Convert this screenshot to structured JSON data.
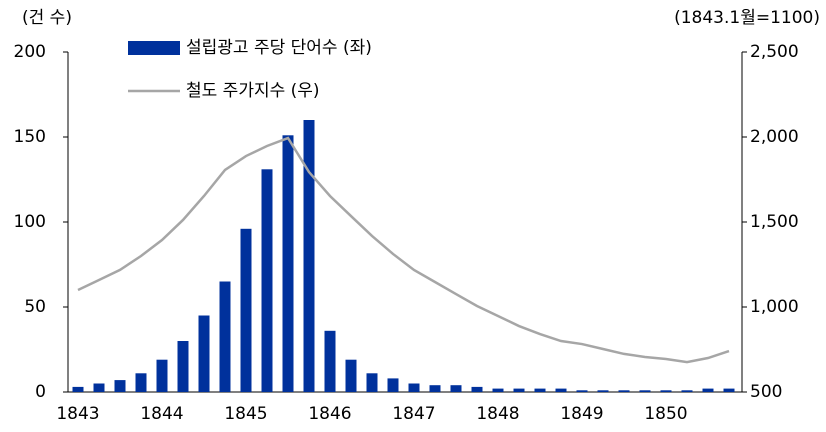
{
  "chart_data": {
    "type": "bar_line",
    "y_label": "(건 수)",
    "y2_label": "(1843.1월=1100)",
    "categories": [
      "1843",
      null,
      null,
      null,
      "1844",
      null,
      null,
      null,
      "1845",
      null,
      null,
      null,
      "1846",
      null,
      null,
      null,
      "1847",
      null,
      null,
      null,
      "1848",
      null,
      null,
      null,
      "1849",
      null,
      null,
      null,
      "1850",
      null,
      null,
      null
    ],
    "series": [
      {
        "name": "설립광고 주당 단어수 (좌)",
        "type": "bar",
        "color": "#00319c",
        "axis": "y",
        "values": [
          3,
          5,
          7,
          11,
          19,
          30,
          45,
          65,
          96,
          131,
          151,
          160,
          36,
          19,
          11,
          8,
          5,
          4,
          4,
          3,
          2,
          2,
          2,
          2,
          1,
          1,
          1,
          1,
          1,
          1,
          2,
          2
        ]
      },
      {
        "name": "철도 주가지수 (우)",
        "type": "line",
        "color": "#a6a6a6",
        "axis": "y2",
        "values": [
          1100,
          1159,
          1218,
          1300,
          1394,
          1512,
          1653,
          1806,
          1888,
          1947,
          1994,
          1794,
          1653,
          1535,
          1418,
          1312,
          1218,
          1147,
          1076,
          1006,
          947,
          888,
          841,
          800,
          782,
          753,
          724,
          706,
          694,
          676,
          700,
          741
        ]
      }
    ],
    "ylim": [
      0,
      200
    ],
    "yticks": [
      0,
      50,
      100,
      150,
      200
    ],
    "y2lim": [
      500,
      2500
    ],
    "y2ticks": [
      500,
      {
        "value": 1000,
        "label": "1,000"
      },
      {
        "value": 1500,
        "label": "1,500"
      },
      {
        "value": 2000,
        "label": "2,000"
      },
      {
        "value": 2500,
        "label": "2,500"
      }
    ]
  }
}
